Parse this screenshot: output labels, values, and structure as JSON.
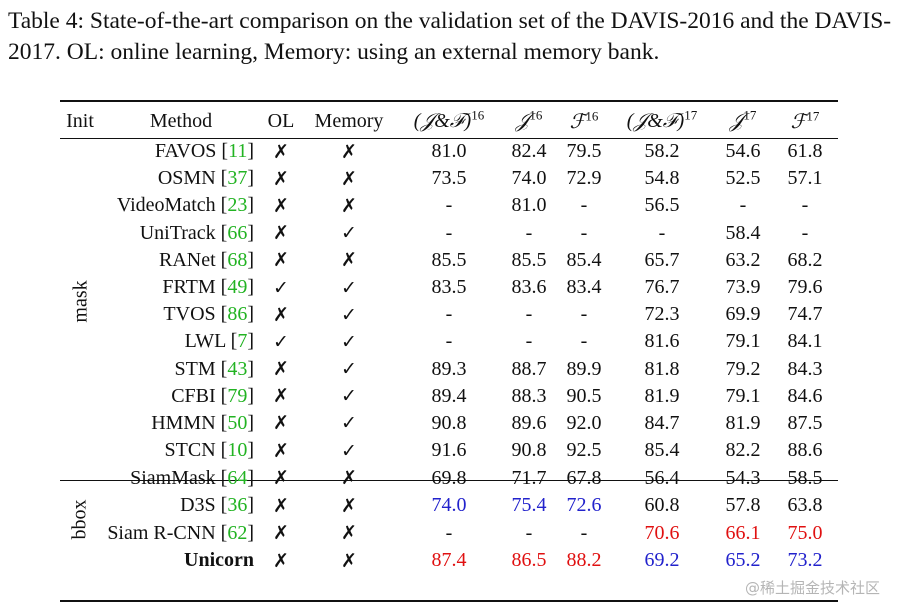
{
  "caption": "Table 4: State-of-the-art comparison on the validation set of the DAVIS-2016 and the DAVIS-2017. OL: online learning, Memory: using an external memory bank.",
  "headers": {
    "init": "Init",
    "method": "Method",
    "ol": "OL",
    "memory": "Memory",
    "jf16": "(𝒥&ℱ)",
    "j16": "𝒥",
    "f16": "ℱ",
    "jf17": "(𝒥&ℱ)",
    "j17": "𝒥",
    "f17": "ℱ",
    "sup16": "16",
    "sup17": "17"
  },
  "groups": {
    "mask": "mask",
    "bbox": "bbox"
  },
  "rows": [
    {
      "method": "FAVOS",
      "ref": "11",
      "ol": "✗",
      "memory": "✗",
      "jf16": "81.0",
      "j16": "82.4",
      "f16": "79.5",
      "jf17": "58.2",
      "j17": "54.6",
      "f17": "61.8"
    },
    {
      "method": "OSMN",
      "ref": "37",
      "ol": "✗",
      "memory": "✗",
      "jf16": "73.5",
      "j16": "74.0",
      "f16": "72.9",
      "jf17": "54.8",
      "j17": "52.5",
      "f17": "57.1"
    },
    {
      "method": "VideoMatch",
      "ref": "23",
      "ol": "✗",
      "memory": "✗",
      "jf16": "-",
      "j16": "81.0",
      "f16": "-",
      "jf17": "56.5",
      "j17": "-",
      "f17": "-"
    },
    {
      "method": "UniTrack",
      "ref": "66",
      "ol": "✗",
      "memory": "✓",
      "jf16": "-",
      "j16": "-",
      "f16": "-",
      "jf17": "-",
      "j17": "58.4",
      "f17": "-"
    },
    {
      "method": "RANet",
      "ref": "68",
      "ol": "✗",
      "memory": "✗",
      "jf16": "85.5",
      "j16": "85.5",
      "f16": "85.4",
      "jf17": "65.7",
      "j17": "63.2",
      "f17": "68.2"
    },
    {
      "method": "FRTM",
      "ref": "49",
      "ol": "✓",
      "memory": "✓",
      "jf16": "83.5",
      "j16": "83.6",
      "f16": "83.4",
      "jf17": "76.7",
      "j17": "73.9",
      "f17": "79.6"
    },
    {
      "method": "TVOS",
      "ref": "86",
      "ol": "✗",
      "memory": "✓",
      "jf16": "-",
      "j16": "-",
      "f16": "-",
      "jf17": "72.3",
      "j17": "69.9",
      "f17": "74.7"
    },
    {
      "method": "LWL",
      "ref": "7",
      "ol": "✓",
      "memory": "✓",
      "jf16": "-",
      "j16": "-",
      "f16": "-",
      "jf17": "81.6",
      "j17": "79.1",
      "f17": "84.1"
    },
    {
      "method": "STM",
      "ref": "43",
      "ol": "✗",
      "memory": "✓",
      "jf16": "89.3",
      "j16": "88.7",
      "f16": "89.9",
      "jf17": "81.8",
      "j17": "79.2",
      "f17": "84.3"
    },
    {
      "method": "CFBI",
      "ref": "79",
      "ol": "✗",
      "memory": "✓",
      "jf16": "89.4",
      "j16": "88.3",
      "f16": "90.5",
      "jf17": "81.9",
      "j17": "79.1",
      "f17": "84.6"
    },
    {
      "method": "HMMN",
      "ref": "50",
      "ol": "✗",
      "memory": "✓",
      "jf16": "90.8",
      "j16": "89.6",
      "f16": "92.0",
      "jf17": "84.7",
      "j17": "81.9",
      "f17": "87.5"
    },
    {
      "method": "STCN",
      "ref": "10",
      "ol": "✗",
      "memory": "✓",
      "jf16": "91.6",
      "j16": "90.8",
      "f16": "92.5",
      "jf17": "85.4",
      "j17": "82.2",
      "f17": "88.6"
    },
    {
      "method": "SiamMask",
      "ref": "64",
      "ol": "✗",
      "memory": "✗",
      "jf16": "69.8",
      "j16": "71.7",
      "f16": "67.8",
      "jf17": "56.4",
      "j17": "54.3",
      "f17": "58.5"
    },
    {
      "method": "D3S",
      "ref": "36",
      "ol": "✗",
      "memory": "✗",
      "jf16": "74.0",
      "j16": "75.4",
      "f16": "72.6",
      "jf17": "60.8",
      "j17": "57.8",
      "f17": "63.8"
    },
    {
      "method": "Siam R-CNN",
      "ref": "62",
      "ol": "✗",
      "memory": "✗",
      "jf16": "-",
      "j16": "-",
      "f16": "-",
      "jf17": "70.6",
      "j17": "66.1",
      "f17": "75.0"
    },
    {
      "method": "Unicorn",
      "ref": "",
      "ol": "✗",
      "memory": "✗",
      "jf16": "87.4",
      "j16": "86.5",
      "f16": "88.2",
      "jf17": "69.2",
      "j17": "65.2",
      "f17": "73.2"
    }
  ],
  "watermark": "@稀土掘金技术社区",
  "colors": {
    "cite": "#22b322",
    "best": "#e01010",
    "second": "#2222cc"
  }
}
